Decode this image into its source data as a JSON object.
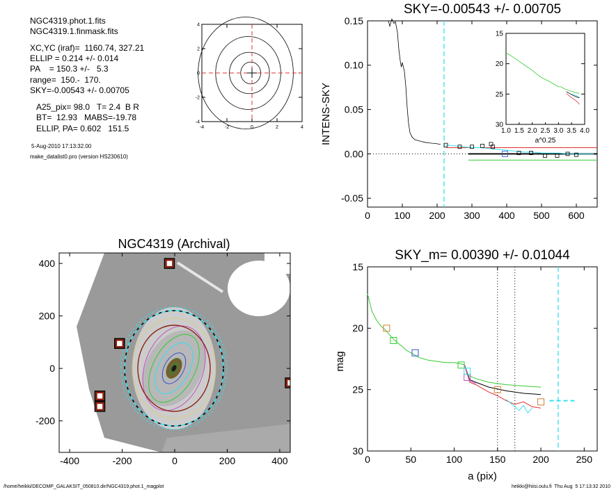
{
  "info": {
    "lines": [
      "NGC4319.phot.1.fits",
      "NGC4319.1.finmask.fits",
      "XC,YC (iraf)=  1160.74, 327.21",
      "ELLIP = 0.214 +/- 0.014",
      "PA    = 150.3 +/-   5.3",
      "range=  150.-  170.",
      "SKY=-0.00543 +/- 0.00705",
      "A25_pix= 98.0   T= 2.4  B R",
      "BT=  12.93   MABS=-19.78",
      "ELLIP, PA= 0.602   151.5"
    ],
    "date": "5-Aug-2010 17:13:32.00",
    "program": "make_datalist0.pro (version HS230610)"
  },
  "footer": {
    "path": "/home/heikki/DECOMP_GALAKSIT_050810.dir/NGC4319.phot.1_magplot",
    "user": "heikki@hiisi.oulu.fi  Thu Aug  5 17:13:32 2010"
  },
  "colors": {
    "cyan": "#33e0f0",
    "red": "#e03030",
    "green": "#33cc33",
    "blue": "#3050d0",
    "magenta": "#c050c0",
    "orange": "#d08030",
    "dark": "#8b2010",
    "gray": "#9a9a9a"
  },
  "chart_data": [
    {
      "id": "contour",
      "type": "contour",
      "title": "",
      "xlim": [
        -4,
        4
      ],
      "ylim": [
        -4,
        4
      ],
      "xticks": [
        "-4",
        "-2",
        "0",
        "2",
        "4"
      ],
      "yticks": [
        "-4",
        "-2",
        "0",
        "2",
        "4"
      ],
      "contours": [
        {
          "rx": 3.8,
          "ry": 4.6,
          "cx": -0.5,
          "cy": 0.0
        },
        {
          "rx": 2.6,
          "ry": 3.0,
          "cx": -0.3,
          "cy": 0.0
        },
        {
          "rx": 1.6,
          "ry": 1.7,
          "cx": -0.2,
          "cy": 0.0
        },
        {
          "rx": 0.8,
          "ry": 0.9,
          "cx": -0.1,
          "cy": 0.0
        }
      ],
      "guides": {
        "x": 0,
        "y": 0
      }
    },
    {
      "id": "sky",
      "type": "line",
      "title": "SKY=-0.00543 +/- 0.00705",
      "xlabel": "",
      "ylabel": "INTENS-SKY",
      "xlim": [
        0,
        660
      ],
      "ylim": [
        -0.06,
        0.15
      ],
      "xticks": [
        "0",
        "100",
        "200",
        "300",
        "400",
        "500",
        "600"
      ],
      "yticks": [
        "-0.05",
        "0.00",
        "0.05",
        "0.10",
        "0.15"
      ],
      "profile": {
        "x": [
          60,
          64,
          70,
          76,
          80,
          86,
          90,
          94,
          97,
          100,
          103,
          106,
          110,
          114,
          118,
          122,
          128,
          136,
          145,
          155,
          165,
          175,
          185,
          195,
          205,
          210
        ],
        "y": [
          0.15,
          0.144,
          0.152,
          0.147,
          0.149,
          0.137,
          0.118,
          0.105,
          0.098,
          0.103,
          0.098,
          0.093,
          0.076,
          0.052,
          0.034,
          0.024,
          0.019,
          0.016,
          0.015,
          0.014,
          0.013,
          0.0125,
          0.012,
          0.0118,
          0.011,
          0.011
        ]
      },
      "profile_tail": {
        "x": [
          225,
          250,
          275,
          300,
          325,
          350,
          375,
          400,
          425,
          450,
          475,
          500,
          525,
          550,
          575,
          600,
          625,
          650
        ],
        "y": [
          0.01,
          0.009,
          0.008,
          0.007,
          0.007,
          0.006,
          0.005,
          0.004,
          0.003,
          0.002,
          0.002,
          0.001,
          0.001,
          0.001,
          0.0,
          0.0,
          0.0,
          0.0
        ]
      },
      "squares": [
        {
          "x": 225,
          "y": 0.01
        },
        {
          "x": 265,
          "y": 0.008
        },
        {
          "x": 300,
          "y": 0.008
        },
        {
          "x": 330,
          "y": 0.009
        },
        {
          "x": 355,
          "y": 0.011
        },
        {
          "x": 360,
          "y": 0.008
        },
        {
          "x": 395,
          "y": 0.0
        },
        {
          "x": 435,
          "y": 0.001
        },
        {
          "x": 470,
          "y": 0.001
        },
        {
          "x": 510,
          "y": -0.002
        },
        {
          "x": 545,
          "y": -0.002
        },
        {
          "x": 575,
          "y": 0.0
        },
        {
          "x": 600,
          "y": -0.001
        }
      ],
      "sky_line": {
        "x": [
          290,
          660
        ],
        "y": 0.0
      },
      "red_line": {
        "x": [
          225,
          660
        ],
        "y": 0.007
      },
      "green_line": {
        "x": [
          290,
          660
        ],
        "y": -0.007
      },
      "dotted_zero": true,
      "vline": 220
    },
    {
      "id": "inset",
      "type": "line",
      "title": "",
      "xlabel": "a^0.25",
      "xlim": [
        1.0,
        4.0
      ],
      "ylim": [
        30,
        15
      ],
      "xticks": [
        "1.0",
        "1.5",
        "2.0",
        "2.5",
        "3.0",
        "3.5",
        "4.0"
      ],
      "yticks": [
        "15",
        "20",
        "25",
        "30"
      ],
      "series": [
        {
          "color": "green",
          "x": [
            1.0,
            1.3,
            1.6,
            1.8,
            2.0,
            2.2,
            2.4,
            2.6,
            2.8,
            3.0,
            3.1,
            3.2,
            3.4,
            3.6,
            3.8
          ],
          "y": [
            18.2,
            19.0,
            19.9,
            20.5,
            21.1,
            21.8,
            22.4,
            22.8,
            23.3,
            23.8,
            23.8,
            24.1,
            24.4,
            24.7,
            24.9
          ]
        },
        {
          "color": "black",
          "x": [
            3.3,
            3.5,
            3.7,
            3.8
          ],
          "y": [
            24.6,
            25.1,
            25.5,
            25.6
          ]
        },
        {
          "color": "red",
          "x": [
            3.3,
            3.5,
            3.7,
            3.8
          ],
          "y": [
            24.9,
            25.6,
            26.2,
            26.7
          ]
        },
        {
          "color": "cyan",
          "x": [
            3.5,
            3.7,
            3.8
          ],
          "y": [
            25.0,
            25.3,
            25.5
          ]
        }
      ]
    },
    {
      "id": "galaxy",
      "type": "image",
      "title": "NGC4319 (Archival)",
      "xlim": [
        -440,
        440
      ],
      "ylim": [
        -320,
        440
      ],
      "xticks": [
        "-400",
        "-200",
        "0",
        "200",
        "400"
      ],
      "yticks": [
        "-200",
        "0",
        "200",
        "400"
      ],
      "masked_points": [
        {
          "x": -20,
          "y": 400
        },
        {
          "x": -210,
          "y": 95
        },
        {
          "x": -285,
          "y": -105
        },
        {
          "x": -285,
          "y": -145
        },
        {
          "x": 440,
          "y": -55
        }
      ]
    },
    {
      "id": "mag",
      "type": "line",
      "title": "SKY_m=  0.00390 +/- 0.01044",
      "xlabel": "a (pix)",
      "ylabel": "mag",
      "xlim": [
        0,
        265
      ],
      "ylim": [
        30,
        15
      ],
      "xticks": [
        "0",
        "50",
        "100",
        "150",
        "200",
        "250"
      ],
      "yticks": [
        "15",
        "20",
        "25",
        "30"
      ],
      "dotted_vlines": [
        150,
        170
      ],
      "cyan_vline": 220,
      "series": [
        {
          "color": "green",
          "x": [
            0,
            5,
            10,
            15,
            20,
            25,
            30,
            35,
            40,
            45,
            50,
            55,
            60,
            65,
            70,
            80,
            90,
            100,
            108,
            112,
            115,
            118,
            125,
            140,
            160,
            180,
            200
          ],
          "y": [
            17.2,
            18.6,
            19.3,
            19.8,
            20.1,
            20.5,
            20.9,
            21.2,
            21.5,
            21.8,
            22.0,
            22.2,
            22.4,
            22.5,
            22.6,
            22.7,
            22.8,
            22.8,
            22.9,
            23.0,
            23.8,
            23.9,
            24.1,
            24.4,
            24.6,
            24.7,
            24.8
          ]
        },
        {
          "color": "black",
          "x": [
            112,
            118,
            125,
            140,
            160,
            180,
            200
          ],
          "y": [
            23.0,
            24.2,
            24.4,
            24.8,
            25.1,
            25.3,
            25.4
          ]
        },
        {
          "color": "red",
          "x": [
            112,
            118,
            125,
            140,
            150,
            160,
            170,
            180,
            190,
            200
          ],
          "y": [
            23.0,
            24.4,
            24.6,
            25.2,
            25.5,
            25.9,
            26.2,
            26.0,
            26.4,
            26.5
          ]
        },
        {
          "color": "magenta",
          "x": [
            112,
            118,
            125
          ],
          "y": [
            23.0,
            24.3,
            24.5
          ]
        },
        {
          "color": "cyan",
          "x": [
            160,
            165,
            170,
            175,
            180,
            185,
            190
          ],
          "y": [
            25.8,
            26.1,
            26.4,
            26.7,
            26.3,
            26.9,
            26.5
          ]
        }
      ],
      "squares": [
        {
          "x": 22,
          "y": 20.0,
          "color": "orange"
        },
        {
          "x": 30,
          "y": 21.0,
          "color": "green"
        },
        {
          "x": 55,
          "y": 22.0,
          "color": "blue"
        },
        {
          "x": 115,
          "y": 24.0,
          "color": "magenta"
        },
        {
          "x": 150,
          "y": 25.0,
          "color": "orange"
        },
        {
          "x": 200,
          "y": 26.0,
          "color": "orange"
        },
        {
          "x": 115,
          "y": 23.5,
          "color": "cyan"
        },
        {
          "x": 108,
          "y": 23.0,
          "color": "green"
        }
      ],
      "dashes": [
        {
          "x1": 210,
          "x2": 240,
          "y": 25.9
        }
      ]
    }
  ]
}
